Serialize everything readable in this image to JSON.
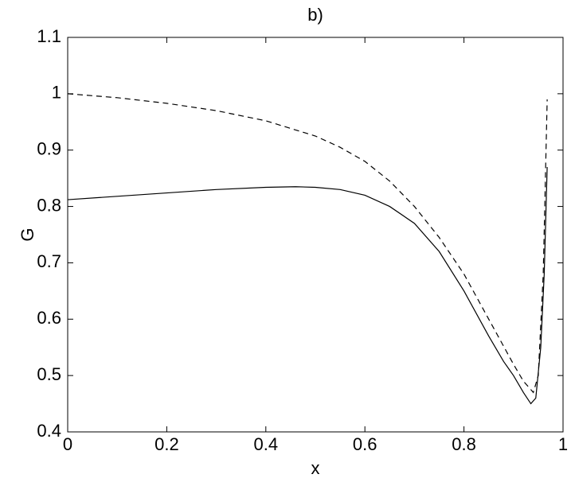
{
  "chart_data": {
    "type": "line",
    "title": "b)",
    "xlabel": "x",
    "ylabel": "G",
    "xlim": [
      0,
      1
    ],
    "ylim": [
      0.4,
      1.1
    ],
    "xticks": [
      0,
      0.2,
      0.4,
      0.6,
      0.8,
      1
    ],
    "yticks": [
      0.4,
      0.5,
      0.6,
      0.7,
      0.8,
      0.9,
      1,
      1.1
    ],
    "series": [
      {
        "color": "#000000",
        "dashed": false,
        "x": [
          0,
          0.1,
          0.2,
          0.3,
          0.4,
          0.46,
          0.5,
          0.55,
          0.6,
          0.65,
          0.7,
          0.75,
          0.8,
          0.85,
          0.88,
          0.9,
          0.92,
          0.935,
          0.945,
          0.955,
          0.962,
          0.968
        ],
        "values": [
          0.812,
          0.818,
          0.824,
          0.83,
          0.834,
          0.835,
          0.834,
          0.83,
          0.82,
          0.8,
          0.77,
          0.72,
          0.65,
          0.57,
          0.525,
          0.5,
          0.47,
          0.45,
          0.46,
          0.55,
          0.68,
          0.87
        ]
      },
      {
        "color": "#000000",
        "dashed": true,
        "x": [
          0,
          0.1,
          0.2,
          0.3,
          0.4,
          0.5,
          0.55,
          0.6,
          0.65,
          0.7,
          0.75,
          0.8,
          0.85,
          0.9,
          0.92,
          0.94,
          0.95,
          0.96,
          0.968
        ],
        "values": [
          1.0,
          0.993,
          0.983,
          0.97,
          0.952,
          0.925,
          0.905,
          0.88,
          0.845,
          0.8,
          0.745,
          0.68,
          0.6,
          0.52,
          0.49,
          0.47,
          0.5,
          0.68,
          0.99
        ]
      }
    ]
  }
}
